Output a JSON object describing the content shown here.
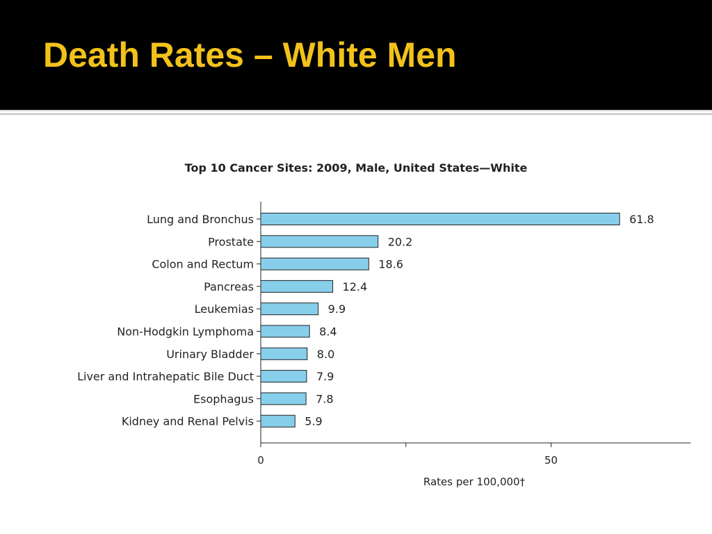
{
  "slide": {
    "title": "Death Rates – White Men"
  },
  "colors": {
    "header_bg": "#000000",
    "title_text": "#f2c21b",
    "bar_fill": "#87ceeb",
    "bar_stroke": "#222222"
  },
  "chart_data": {
    "type": "bar",
    "orientation": "horizontal",
    "title": "Top 10 Cancer Sites: 2009, Male, United States—White",
    "xlabel": "Rates per 100,000†",
    "ylabel": "",
    "categories": [
      "Lung and Bronchus",
      "Prostate",
      "Colon and Rectum",
      "Pancreas",
      "Leukemias",
      "Non-Hodgkin Lymphoma",
      "Urinary Bladder",
      "Liver and Intrahepatic Bile Duct",
      "Esophagus",
      "Kidney and Renal Pelvis"
    ],
    "values": [
      61.8,
      20.2,
      18.6,
      12.4,
      9.9,
      8.4,
      8.0,
      7.9,
      7.8,
      5.9
    ],
    "value_labels": [
      "61.8",
      "20.2",
      "18.6",
      "12.4",
      "9.9",
      "8.4",
      "8.0",
      "7.9",
      "7.8",
      "5.9"
    ],
    "xlim": [
      0,
      74
    ],
    "xticks": [
      0,
      25,
      50
    ],
    "xtick_labels": [
      "0",
      "",
      "50"
    ],
    "grid": false,
    "legend": "none"
  }
}
